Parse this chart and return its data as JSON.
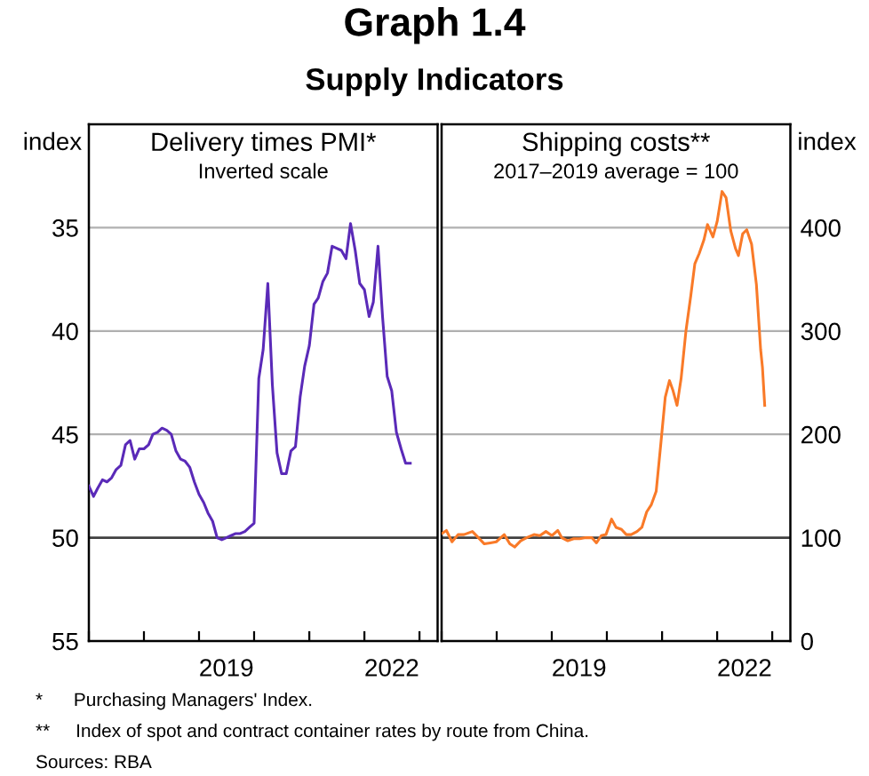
{
  "chart_data": [
    {
      "type": "line",
      "title": "Delivery times PMI*",
      "subtitle": "Inverted scale",
      "ylabel": "index",
      "annotations": [
        "Graph 1.4",
        "Supply Indicators"
      ],
      "xlim": [
        "2017-01",
        "2023-05"
      ],
      "xticks": [
        {
          "value": "2017-01",
          "label": null
        },
        {
          "value": "2018-01",
          "label": null
        },
        {
          "value": "2019-01",
          "label": null
        },
        {
          "value": "2019-07",
          "label": "2019"
        },
        {
          "value": "2020-01",
          "label": null
        },
        {
          "value": "2021-01",
          "label": null
        },
        {
          "value": "2022-01",
          "label": null
        },
        {
          "value": "2022-07",
          "label": "2022"
        },
        {
          "value": "2023-01",
          "label": null
        }
      ],
      "ylim": [
        55,
        30
      ],
      "yticks": [
        35,
        40,
        45,
        50,
        55
      ],
      "grid": "y",
      "ref_lines": [
        {
          "axis": "y",
          "value": 50,
          "color": "#404040"
        }
      ],
      "series": [
        {
          "color": "#5a2ab8",
          "x": [
            "2017-01",
            "2017-02",
            "2017-03",
            "2017-04",
            "2017-05",
            "2017-06",
            "2017-07",
            "2017-08",
            "2017-09",
            "2017-10",
            "2017-11",
            "2017-12",
            "2018-01",
            "2018-02",
            "2018-03",
            "2018-04",
            "2018-05",
            "2018-06",
            "2018-07",
            "2018-08",
            "2018-09",
            "2018-10",
            "2018-11",
            "2018-12",
            "2019-01",
            "2019-02",
            "2019-03",
            "2019-04",
            "2019-05",
            "2019-06",
            "2019-07",
            "2019-08",
            "2019-09",
            "2019-10",
            "2019-11",
            "2019-12",
            "2020-01",
            "2020-02",
            "2020-03",
            "2020-04",
            "2020-05",
            "2020-06",
            "2020-07",
            "2020-08",
            "2020-09",
            "2020-10",
            "2020-11",
            "2020-12",
            "2021-01",
            "2021-02",
            "2021-03",
            "2021-04",
            "2021-05",
            "2021-06",
            "2021-07",
            "2021-08",
            "2021-09",
            "2021-10",
            "2021-11",
            "2021-12",
            "2022-01",
            "2022-02",
            "2022-03",
            "2022-04",
            "2022-05",
            "2022-06",
            "2022-07",
            "2022-08",
            "2022-09",
            "2022-10",
            "2022-11"
          ],
          "values": [
            47.5,
            48.0,
            47.6,
            47.2,
            47.3,
            47.1,
            46.7,
            46.5,
            45.5,
            45.3,
            46.2,
            45.7,
            45.7,
            45.5,
            45.0,
            44.9,
            44.7,
            44.8,
            45.0,
            45.8,
            46.2,
            46.3,
            46.6,
            47.3,
            47.9,
            48.3,
            48.8,
            49.2,
            50.0,
            50.1,
            50.0,
            49.9,
            49.8,
            49.8,
            49.7,
            49.5,
            49.3,
            42.3,
            40.9,
            37.7,
            42.6,
            45.9,
            46.9,
            46.9,
            45.8,
            45.6,
            43.2,
            41.7,
            40.7,
            38.7,
            38.4,
            37.6,
            37.2,
            35.9,
            36.0,
            36.1,
            36.5,
            34.8,
            36.1,
            37.7,
            38.0,
            39.3,
            38.6,
            35.9,
            39.3,
            42.2,
            42.9,
            44.9,
            45.7,
            46.4,
            46.4
          ]
        }
      ]
    },
    {
      "type": "line",
      "title": "Shipping costs**",
      "subtitle": "2017–2019 average = 100",
      "ylabel": "index",
      "annotations": [
        "*      Purchasing Managers' Index.",
        "**     Index of spot and contract container rates by route from China.",
        "Sources: RBA"
      ],
      "xlim": [
        "2017-01",
        "2023-05"
      ],
      "xticks": [
        {
          "value": "2017-01",
          "label": null
        },
        {
          "value": "2018-01",
          "label": null
        },
        {
          "value": "2019-01",
          "label": null
        },
        {
          "value": "2019-07",
          "label": "2019"
        },
        {
          "value": "2020-01",
          "label": null
        },
        {
          "value": "2021-01",
          "label": null
        },
        {
          "value": "2022-01",
          "label": null
        },
        {
          "value": "2022-07",
          "label": "2022"
        },
        {
          "value": "2023-01",
          "label": null
        }
      ],
      "ylim": [
        0,
        500
      ],
      "yticks": [
        0,
        100,
        200,
        300,
        400
      ],
      "grid": "y",
      "ref_lines": [
        {
          "axis": "y",
          "value": 100,
          "color": "#404040"
        }
      ],
      "series": [
        {
          "color": "#f97a28",
          "x": [
            "2017-01-01",
            "2017-02-02",
            "2017-03-11",
            "2017-04-20",
            "2017-05-29",
            "2017-07-24",
            "2017-09-02",
            "2017-10-11",
            "2017-11-20",
            "2017-12-29",
            "2018-02-20",
            "2018-03-29",
            "2018-04-30",
            "2018-06-09",
            "2018-07-18",
            "2018-09-05",
            "2018-10-14",
            "2018-11-23",
            "2019-01-02",
            "2019-02-10",
            "2019-03-08",
            "2019-04-17",
            "2019-05-26",
            "2019-07-05",
            "2019-08-14",
            "2019-09-23",
            "2019-10-24",
            "2019-11-25",
            "2019-12-26",
            "2020-02-01",
            "2020-03-02",
            "2020-04-07",
            "2020-05-09",
            "2020-06-10",
            "2020-07-19",
            "2020-08-20",
            "2020-09-21",
            "2020-10-22",
            "2020-11-23",
            "2020-12-25",
            "2021-01-22",
            "2021-02-19",
            "2021-03-13",
            "2021-04-10",
            "2021-05-07",
            "2021-06-08",
            "2021-07-10",
            "2021-08-06",
            "2021-09-04",
            "2021-10-05",
            "2021-10-29",
            "2021-12-04",
            "2022-01-01",
            "2022-02-02",
            "2022-03-01",
            "2022-04-01",
            "2022-05-02",
            "2022-05-22",
            "2022-06-19",
            "2022-07-16",
            "2022-08-17",
            "2022-09-18",
            "2022-10-16",
            "2022-10-28",
            "2022-11-12"
          ],
          "values": [
            104,
            107,
            96,
            103,
            103,
            106,
            100,
            94,
            95,
            96,
            103,
            94,
            91,
            97,
            100,
            103,
            102,
            106,
            102,
            107,
            100,
            97,
            99,
            99,
            100,
            100,
            95,
            102,
            103,
            118,
            110,
            108,
            103,
            103,
            106,
            110,
            125,
            132,
            145,
            193,
            236,
            252,
            243,
            228,
            254,
            300,
            334,
            365,
            375,
            388,
            403,
            391,
            406,
            435,
            429,
            397,
            380,
            373,
            394,
            398,
            384,
            345,
            282,
            265,
            228
          ]
        }
      ]
    }
  ]
}
